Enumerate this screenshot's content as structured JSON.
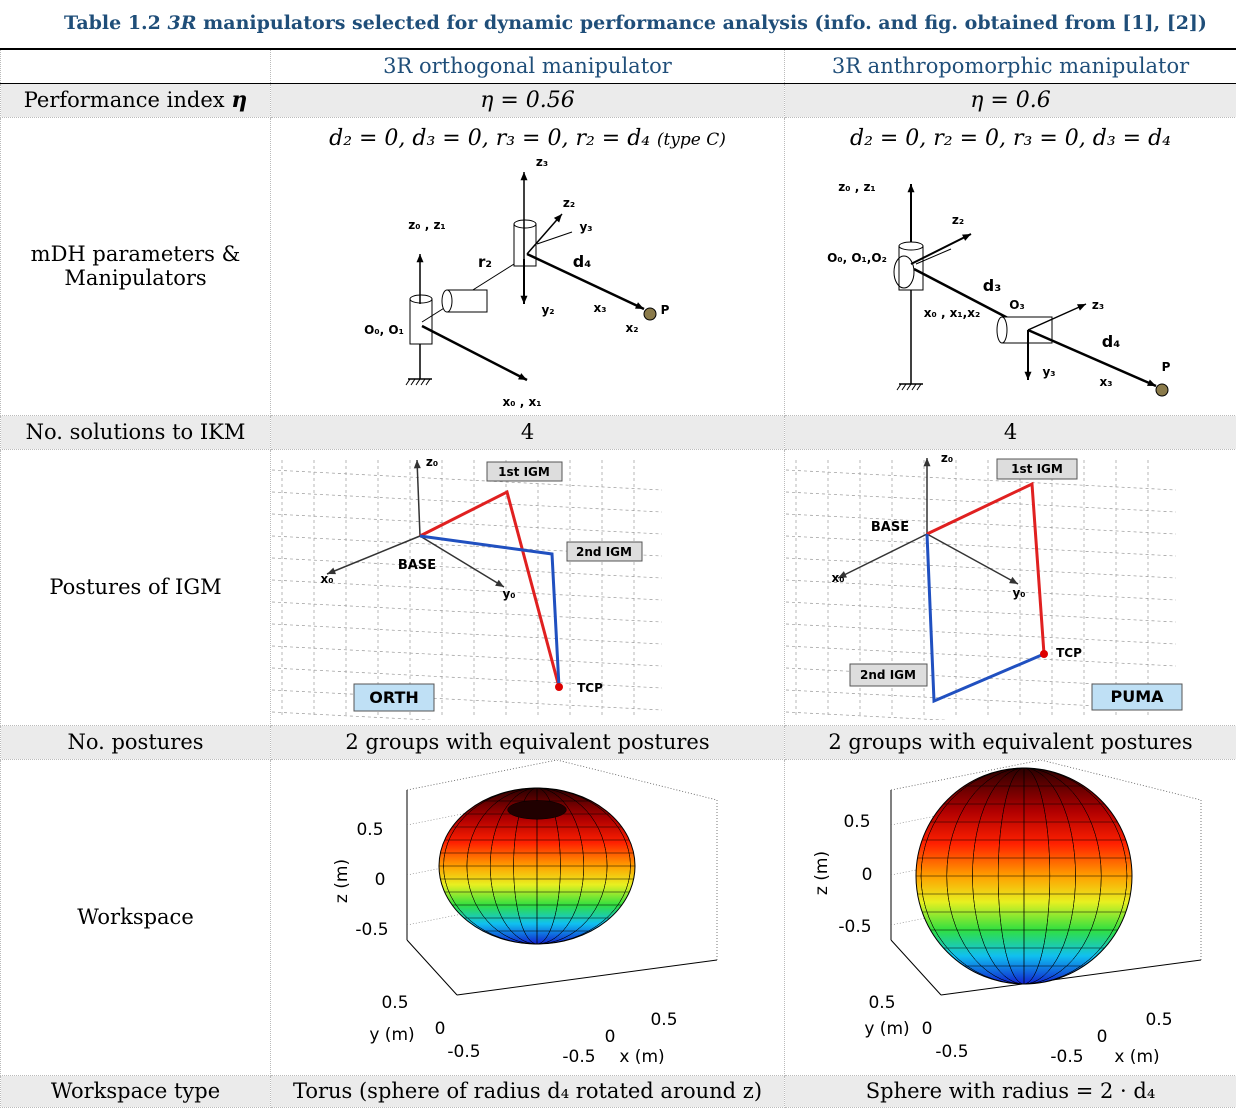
{
  "table": {
    "caption": {
      "label": "Table 1.2",
      "emph": "3R",
      "rest": "manipulators selected for dynamic performance analysis (info. and fig. obtained from [1], [2])"
    },
    "columns": [
      "3R orthogonal manipulator",
      "3R anthropomorphic manipulator"
    ],
    "rows": [
      {
        "label": [
          "Performance index",
          "η"
        ],
        "cells": [
          "η = 0.56",
          "η = 0.6"
        ]
      },
      {
        "label": [
          "mDH parameters &",
          "Manipulators"
        ],
        "cells": [
          {
            "formula": "d₂ = 0, d₃ = 0, r₃ = 0, r₂ = d₄",
            "note": "(type C)",
            "figure": [
              "z₃",
              "z₂",
              "y₃",
              "z₀ , z₁",
              "r₂",
              "d₄",
              "y₂",
              "x₃",
              "P",
              "x₂",
              "O₀, O₁",
              "x₀ , x₁"
            ]
          },
          {
            "formula": "d₂ = 0, r₂ = 0, r₃ = 0, d₃ = d₄",
            "figure": [
              "z₀ , z₁",
              "z₂",
              "O₀, O₁,O₂",
              "d₃",
              "x₀ , x₁,x₂",
              "O₃",
              "z₃",
              "d₄",
              "y₃",
              "x₃",
              "P"
            ]
          }
        ]
      },
      {
        "label": [
          "No. solutions to IKM"
        ],
        "cells": [
          "4",
          "4"
        ]
      },
      {
        "label": [
          "Postures of IGM"
        ],
        "cells": [
          {
            "figure": [
              "z₀",
              "1st IGM",
              "2nd IGM",
              "BASE",
              "x₀",
              "y₀",
              "TCP",
              "ORTH"
            ]
          },
          {
            "figure": [
              "z₀",
              "1st IGM",
              "BASE",
              "x₀",
              "y₀",
              "TCP",
              "2nd IGM",
              "PUMA"
            ]
          }
        ]
      },
      {
        "label": [
          "No. postures"
        ],
        "cells": [
          "2 groups with equivalent postures",
          "2 groups with equivalent postures"
        ]
      },
      {
        "label": [
          "Workspace"
        ],
        "cells": [
          {
            "figure": [
              "0.5",
              "0",
              "-0.5",
              "z (m)",
              "0.5",
              "0",
              "-0.5",
              "y (m)",
              "-0.5",
              "0",
              "0.5",
              "x (m)"
            ]
          },
          {
            "figure": [
              "0.5",
              "0",
              "-0.5",
              "z (m)",
              "0.5",
              "0",
              "-0.5",
              "y (m)",
              "-0.5",
              "0",
              "0.5",
              "x (m)"
            ]
          }
        ]
      },
      {
        "label": [
          "Workspace type"
        ],
        "cells": [
          "Torus (sphere of radius d₄ rotated around z)",
          "Sphere with radius = 2 · d₄"
        ]
      }
    ]
  }
}
